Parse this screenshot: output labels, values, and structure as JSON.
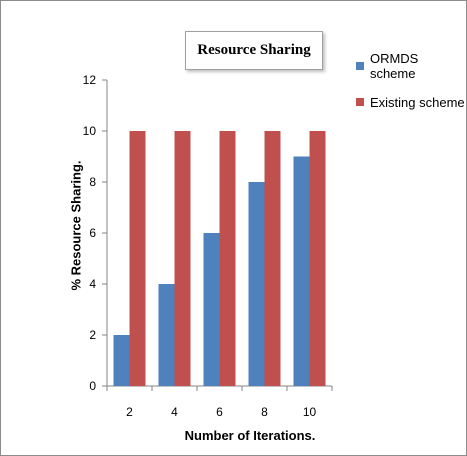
{
  "chart_data": {
    "type": "bar",
    "title": "Resource Sharing",
    "xlabel": "Number of Iterations.",
    "ylabel": "% Resource Sharing.",
    "categories": [
      "2",
      "4",
      "6",
      "8",
      "10"
    ],
    "series": [
      {
        "name": "ORMDS scheme",
        "color": "#4f81bd",
        "values": [
          2,
          4,
          6,
          8,
          9
        ]
      },
      {
        "name": "Existing scheme",
        "color": "#c0504d",
        "values": [
          10,
          10,
          10,
          10,
          10
        ]
      }
    ],
    "ylim": [
      0,
      12
    ],
    "yticks": [
      "0",
      "2",
      "4",
      "6",
      "8",
      "10",
      "12"
    ],
    "grid": false,
    "legend_position": "right"
  }
}
